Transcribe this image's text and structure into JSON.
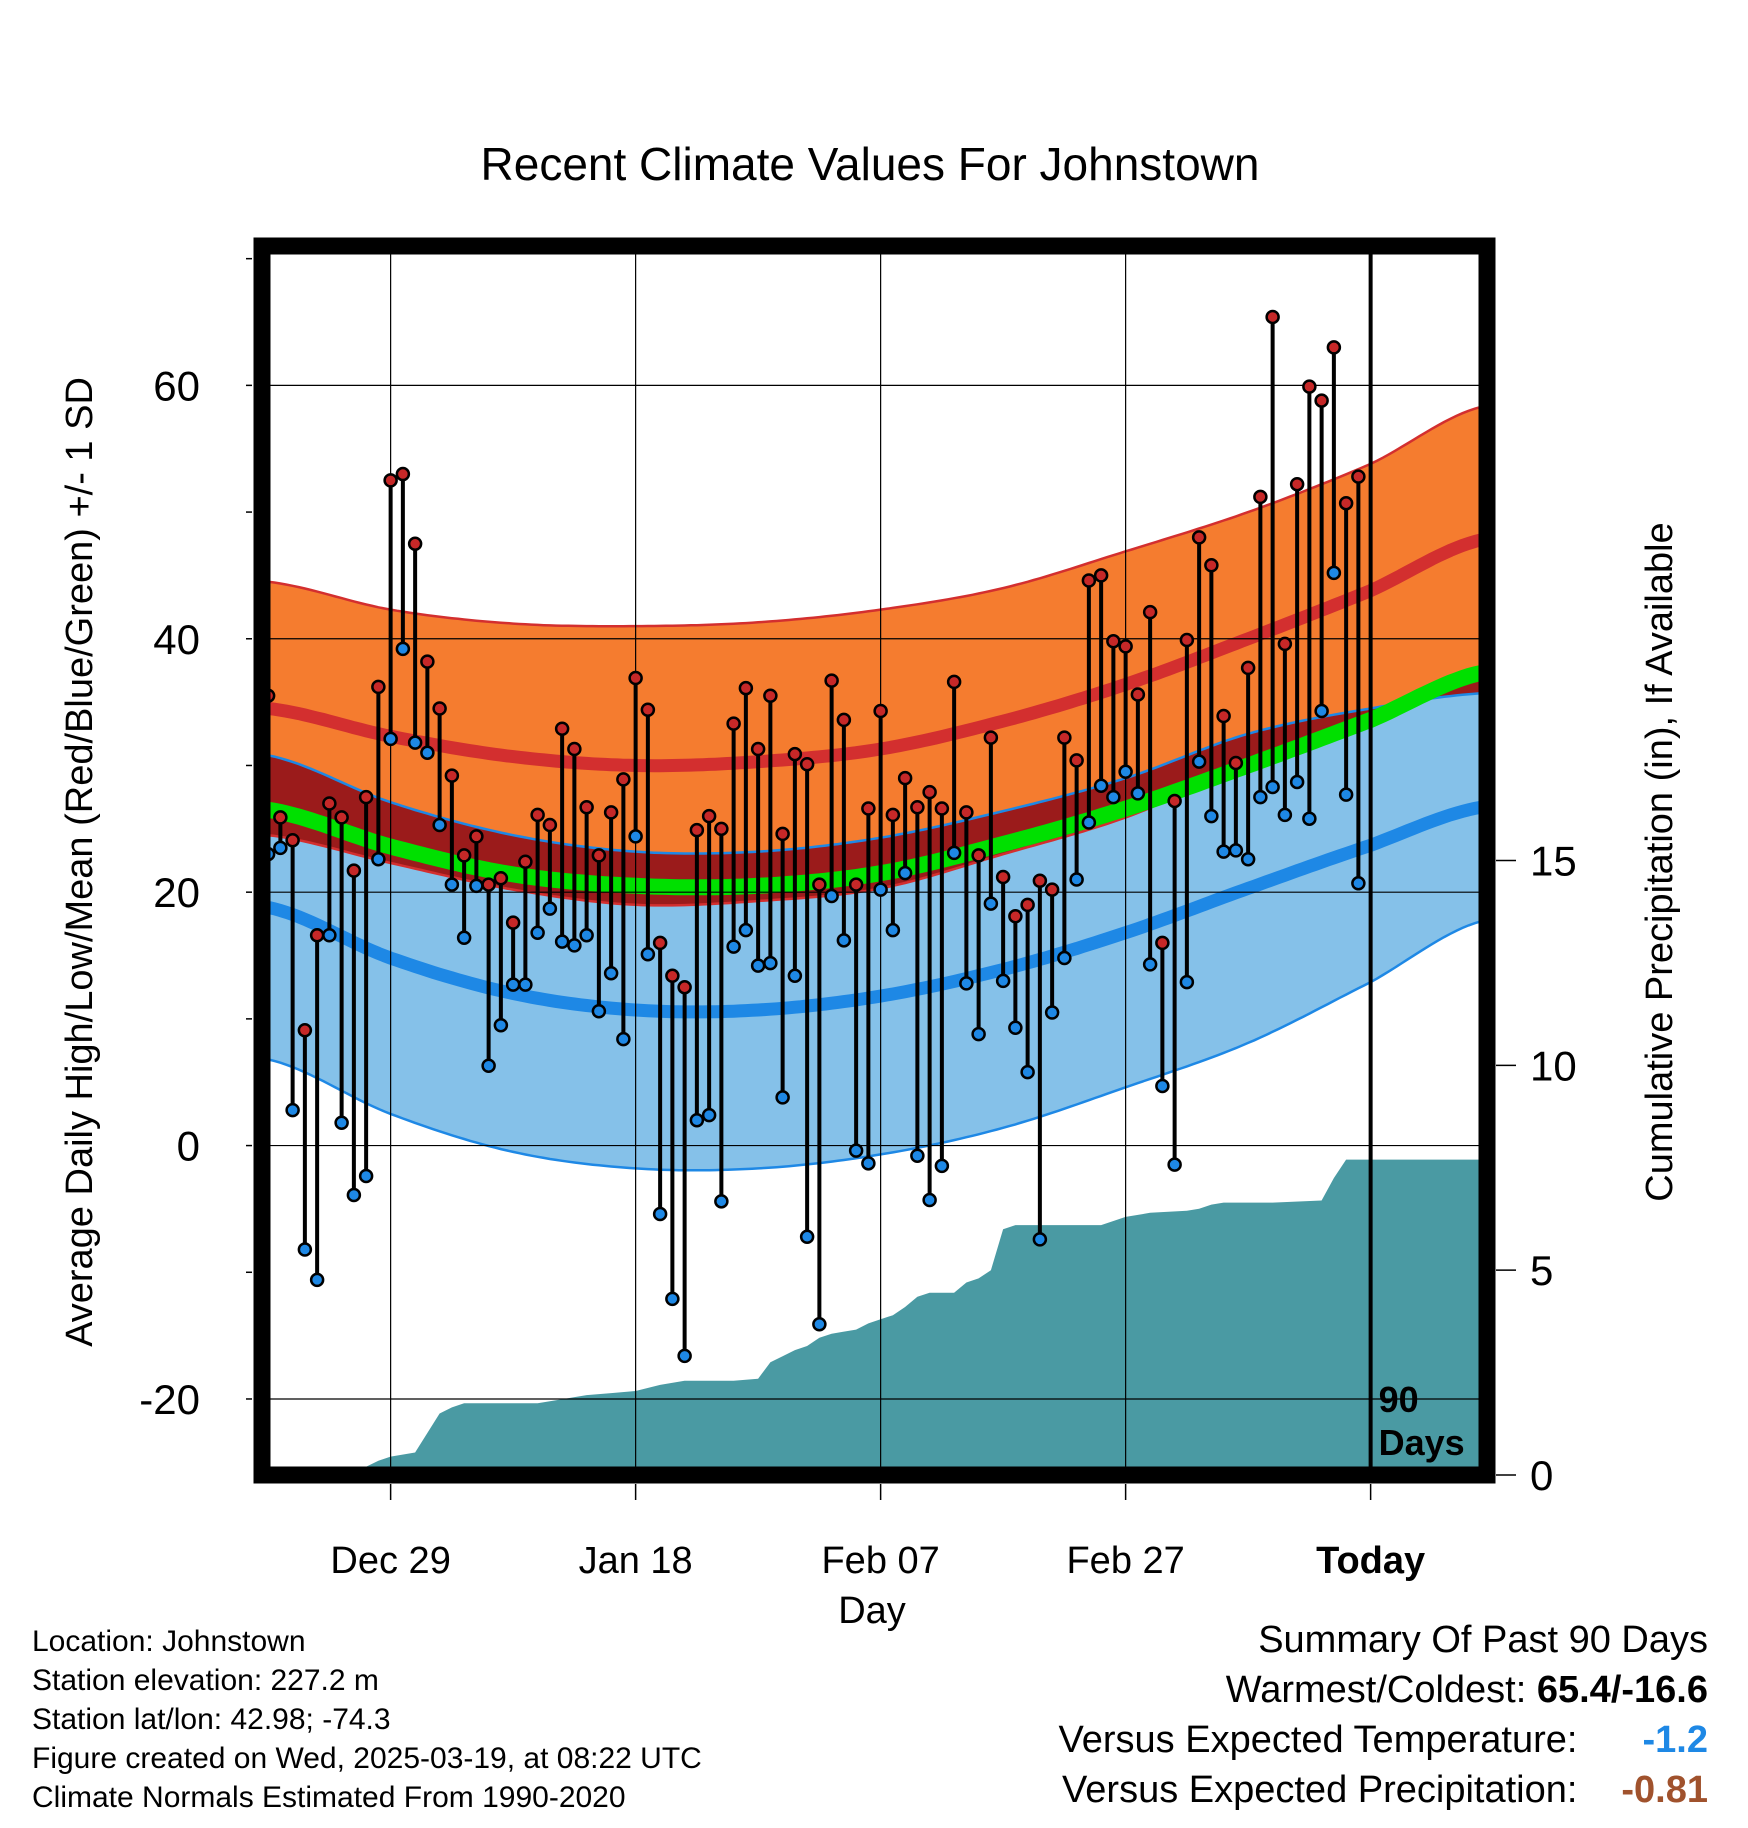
{
  "chart_data": {
    "type": "line",
    "title": "Recent Climate Values For Johnstown",
    "xlabel": "Day",
    "ylabel": "Average Daily High/Low/Mean (Red/Blue/Green) +/- 1 SD",
    "y2label": "Cumulative Precipitation (in), If Available",
    "ylim": [
      -26,
      71
    ],
    "y2lim": [
      0,
      30
    ],
    "yticks": [
      "60",
      "40",
      "20",
      "0",
      "-20"
    ],
    "y2ticks": [
      "15",
      "10",
      "5",
      "0"
    ],
    "xticks": [
      {
        "day": 10,
        "label": "Dec 29"
      },
      {
        "day": 30,
        "label": "Jan 18"
      },
      {
        "day": 50,
        "label": "Feb 07"
      },
      {
        "day": 70,
        "label": "Feb 27"
      },
      {
        "day": 90,
        "label": "Today"
      }
    ],
    "xlim": [
      -0.5,
      99.5
    ],
    "today_label": [
      "90",
      "Days"
    ],
    "normals": {
      "day": [
        0,
        10,
        20,
        30,
        40,
        50,
        60,
        70,
        80,
        90,
        99
      ],
      "high_mean": [
        34.5,
        32.3,
        30.7,
        30.0,
        30.3,
        31.3,
        33.5,
        36.4,
        40.0,
        43.8,
        47.8
      ],
      "high_sd": [
        10,
        10,
        10.5,
        11,
        11,
        11,
        10.5,
        10.5,
        10,
        10,
        10.5
      ],
      "low_mean": [
        18.8,
        14.8,
        12.0,
        10.7,
        10.7,
        11.8,
        13.9,
        16.8,
        20.3,
        23.7,
        26.7
      ],
      "low_sd": [
        12,
        12.3,
        12.5,
        12.5,
        12.5,
        12.5,
        12.5,
        12.2,
        12.2,
        10.8,
        9
      ],
      "mean_mean": [
        26.5,
        23.6,
        21.4,
        20.5,
        20.5,
        21.5,
        23.8,
        26.6,
        30.0,
        33.6,
        37.3
      ]
    },
    "series": [
      {
        "name": "High",
        "color": "#c62828",
        "values": [
          35.5,
          25.9,
          24.1,
          9.1,
          16.6,
          27.0,
          25.9,
          21.7,
          27.5,
          36.2,
          52.5,
          53.0,
          47.5,
          38.2,
          34.5,
          29.2,
          22.9,
          24.4,
          20.6,
          21.1,
          17.6,
          22.4,
          26.1,
          25.3,
          32.9,
          31.3,
          26.7,
          22.9,
          26.3,
          28.9,
          36.9,
          34.4,
          16.0,
          13.4,
          12.5,
          24.9,
          26.0,
          25.0,
          33.3,
          36.1,
          31.3,
          35.5,
          24.6,
          30.9,
          30.1,
          20.6,
          36.7,
          33.6,
          20.6,
          26.6,
          34.3,
          26.1,
          29.0,
          26.7,
          27.9,
          26.6,
          36.6,
          26.3,
          22.9,
          32.2,
          21.2,
          18.1,
          19.0,
          20.9,
          20.2,
          32.2,
          30.4,
          44.6,
          45.0,
          39.8,
          39.4,
          35.6,
          42.1,
          16.0,
          27.2,
          39.9,
          48.0,
          45.8,
          33.9,
          30.2,
          37.7,
          51.2,
          65.4,
          39.6,
          52.2,
          59.9,
          58.8,
          63.0,
          50.7,
          52.8
        ]
      },
      {
        "name": "Low",
        "color": "#1e88e5",
        "values": [
          23.0,
          23.5,
          2.8,
          -8.2,
          -10.6,
          16.6,
          1.8,
          -3.9,
          -2.4,
          22.6,
          32.1,
          39.2,
          31.8,
          31.0,
          25.3,
          20.6,
          16.4,
          20.5,
          6.3,
          9.5,
          12.7,
          12.7,
          16.8,
          18.7,
          16.1,
          15.8,
          16.6,
          10.6,
          13.6,
          8.4,
          24.4,
          15.1,
          -5.4,
          -12.1,
          -16.6,
          2.0,
          2.4,
          -4.4,
          15.7,
          17.0,
          14.2,
          14.4,
          3.8,
          13.4,
          -7.2,
          -14.1,
          19.7,
          16.2,
          -0.4,
          -1.4,
          20.2,
          17.0,
          21.5,
          -0.8,
          -4.3,
          -1.6,
          23.1,
          12.8,
          8.8,
          19.1,
          13.0,
          9.3,
          5.8,
          -7.4,
          10.5,
          14.8,
          21.0,
          25.5,
          28.4,
          27.5,
          29.5,
          27.8,
          14.3,
          4.7,
          -1.5,
          12.9,
          30.3,
          26.0,
          23.2,
          23.3,
          22.6,
          27.5,
          28.3,
          26.1,
          28.7,
          25.8,
          34.3,
          45.2,
          27.7,
          20.7
        ]
      }
    ],
    "precip": {
      "day": [
        -0.5,
        8,
        9,
        10,
        12,
        14,
        15,
        16,
        18,
        22,
        24,
        26,
        28,
        30,
        32,
        34,
        36,
        38,
        40,
        41,
        42,
        43,
        44,
        45,
        46,
        47,
        48,
        49,
        50,
        51,
        52,
        53,
        54,
        55,
        56,
        57,
        58,
        59,
        60,
        61,
        62,
        63,
        64,
        65,
        66,
        68,
        69,
        70,
        71,
        72,
        75,
        76,
        77,
        78,
        82,
        86,
        87,
        88,
        89,
        99.5
      ],
      "value": [
        0.1,
        0.2,
        0.35,
        0.45,
        0.55,
        1.5,
        1.65,
        1.75,
        1.75,
        1.75,
        1.85,
        1.95,
        2.0,
        2.05,
        2.2,
        2.3,
        2.3,
        2.3,
        2.35,
        2.75,
        2.9,
        3.05,
        3.15,
        3.35,
        3.45,
        3.5,
        3.55,
        3.7,
        3.8,
        3.9,
        4.1,
        4.35,
        4.45,
        4.45,
        4.45,
        4.7,
        4.8,
        5.0,
        6.0,
        6.1,
        6.1,
        6.1,
        6.1,
        6.1,
        6.1,
        6.1,
        6.2,
        6.3,
        6.35,
        6.4,
        6.45,
        6.5,
        6.6,
        6.65,
        6.65,
        6.7,
        7.25,
        7.7,
        7.7,
        7.7
      ]
    }
  },
  "info": {
    "location": "Location: Johnstown",
    "elevation": "Station elevation: 227.2 m",
    "latlon": "Station lat/lon: 42.98; -74.3",
    "created": "Figure created on Wed, 2025-03-19, at 08:22 UTC",
    "normals_period": "Climate Normals Estimated From 1990-2020"
  },
  "summary": {
    "heading": "Summary Of Past 90 Days",
    "warm_cold_label": "Warmest/Coldest:",
    "warm_cold_value": "65.4/-16.6",
    "temp_label": "Versus Expected Temperature:",
    "temp_value": "-1.2",
    "precip_label": "Versus Expected Precipitation:",
    "precip_value": "-0.81"
  }
}
